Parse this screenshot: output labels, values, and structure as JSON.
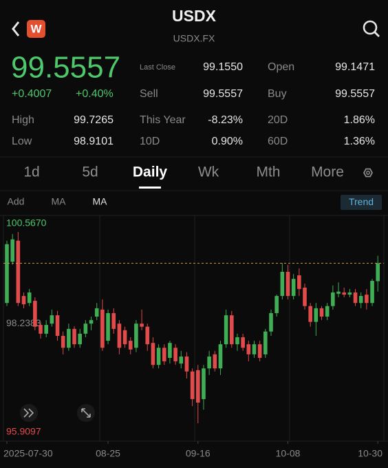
{
  "header": {
    "title": "USDX",
    "subtitle": "USDX.FX",
    "logo": "W"
  },
  "quote": {
    "price": "99.5557",
    "change": "+0.4007",
    "change_pct": "+0.40%",
    "stats": [
      {
        "label": "Last Close",
        "value": "99.1550"
      },
      {
        "label": "Open",
        "value": "99.1471"
      },
      {
        "label": "Sell",
        "value": "99.5557"
      },
      {
        "label": "Buy",
        "value": "99.5557"
      },
      {
        "label": "High",
        "value": "99.7265"
      },
      {
        "label": "This Year",
        "value": "-8.23%"
      },
      {
        "label": "20D",
        "value": "1.86%"
      },
      {
        "label": "Low",
        "value": "98.9101"
      },
      {
        "label": "10D",
        "value": "0.90%"
      },
      {
        "label": "60D",
        "value": "1.36%"
      }
    ]
  },
  "tabs": [
    "1d",
    "5d",
    "Daily",
    "Wk",
    "Mth",
    "More"
  ],
  "toolbar": {
    "items": [
      "Add",
      "MA",
      "MA"
    ],
    "trend": "Trend"
  },
  "chart_data": {
    "type": "candlestick",
    "up_color": "#3fae55",
    "down_color": "#e04b4b",
    "categories": [
      "2025-07-30",
      null,
      null,
      null,
      null,
      null,
      null,
      null,
      null,
      null,
      null,
      null,
      null,
      null,
      null,
      null,
      null,
      null,
      "08-25",
      null,
      null,
      null,
      null,
      null,
      null,
      null,
      null,
      null,
      null,
      null,
      null,
      null,
      null,
      null,
      "09-16",
      null,
      null,
      null,
      null,
      null,
      null,
      null,
      null,
      null,
      null,
      null,
      null,
      null,
      null,
      null,
      "10-08",
      null,
      null,
      null,
      null,
      null,
      null,
      null,
      null,
      null,
      null,
      null,
      null,
      null,
      null,
      null,
      "10-30"
    ],
    "open": [
      98.65,
      99.59,
      100.07,
      98.81,
      98.65,
      98.7,
      98.15,
      97.95,
      98.18,
      98.37,
      97.9,
      97.63,
      98.06,
      97.71,
      97.95,
      98.18,
      98.34,
      98.5,
      97.79,
      98.42,
      98.18,
      98.03,
      97.79,
      97.63,
      98.18,
      98.11,
      97.74,
      97.24,
      97.63,
      97.4,
      97.63,
      97.27,
      97.43,
      97.09,
      97.12,
      96.46,
      97.16,
      97.48,
      97.16,
      97.71,
      98.37,
      97.71,
      97.87,
      97.71,
      97.48,
      97.71,
      97.48,
      98.0,
      98.42,
      98.81,
      99.36,
      98.81,
      99.28,
      99.0,
      98.58,
      98.22,
      98.53,
      98.34,
      98.58,
      98.86,
      98.89,
      98.84,
      98.89,
      98.65,
      98.84,
      98.65,
      99.1471
    ],
    "high": [
      100.07,
      100.22,
      100.27,
      98.89,
      98.97,
      98.78,
      98.22,
      98.26,
      98.5,
      98.47,
      98.0,
      98.18,
      98.12,
      98.06,
      98.26,
      98.34,
      98.65,
      98.73,
      98.5,
      98.53,
      98.26,
      98.11,
      97.87,
      98.26,
      98.5,
      98.18,
      97.87,
      97.71,
      97.71,
      97.79,
      97.71,
      97.56,
      97.53,
      97.16,
      97.24,
      97.24,
      97.56,
      97.56,
      97.79,
      98.5,
      98.47,
      97.95,
      97.95,
      97.79,
      97.79,
      97.79,
      98.06,
      98.5,
      98.84,
      99.56,
      99.52,
      99.31,
      99.44,
      99.09,
      98.65,
      98.65,
      98.58,
      98.65,
      99.05,
      99.12,
      99.0,
      98.97,
      98.97,
      98.89,
      98.97,
      99.2,
      99.7265
    ],
    "low": [
      98.58,
      99.52,
      98.58,
      98.53,
      98.58,
      98.03,
      97.84,
      97.87,
      98.11,
      97.79,
      97.48,
      97.56,
      97.63,
      97.63,
      97.87,
      98.03,
      98.26,
      97.56,
      97.71,
      97.95,
      97.48,
      97.63,
      97.48,
      97.53,
      98.03,
      97.56,
      97.16,
      97.16,
      97.24,
      97.27,
      97.24,
      97.16,
      96.93,
      96.3,
      95.91,
      96.22,
      97.01,
      97.09,
      97.01,
      97.63,
      97.63,
      97.56,
      97.56,
      97.32,
      97.4,
      97.32,
      97.4,
      97.9,
      98.34,
      98.73,
      98.73,
      98.73,
      98.81,
      98.5,
      98.11,
      97.9,
      98.26,
      98.26,
      98.5,
      98.78,
      98.78,
      98.78,
      98.58,
      98.53,
      98.5,
      98.58,
      98.9101
    ],
    "close": [
      99.99,
      100.1,
      98.65,
      98.62,
      98.89,
      98.11,
      97.95,
      98.15,
      98.37,
      97.9,
      97.63,
      98.06,
      97.71,
      97.95,
      98.18,
      98.26,
      98.53,
      97.63,
      98.42,
      98.06,
      97.63,
      97.71,
      97.59,
      98.18,
      98.11,
      97.71,
      97.24,
      97.63,
      97.32,
      97.74,
      97.32,
      97.43,
      97.09,
      96.46,
      96.38,
      97.16,
      97.43,
      97.16,
      97.71,
      98.37,
      97.71,
      97.87,
      97.63,
      97.48,
      97.71,
      97.4,
      98.0,
      98.42,
      98.81,
      99.36,
      98.81,
      99.2,
      98.97,
      98.58,
      98.22,
      98.53,
      98.34,
      98.58,
      98.89,
      98.91,
      98.84,
      98.89,
      98.65,
      98.81,
      98.65,
      99.155,
      99.5557
    ],
    "ylim": [
      95.9097,
      100.567
    ],
    "yticks": [
      {
        "value": 100.567,
        "label": "100.5670"
      },
      {
        "value": 98.2383,
        "label": "98.2383"
      },
      {
        "value": 95.9097,
        "label": "95.9097"
      }
    ]
  }
}
